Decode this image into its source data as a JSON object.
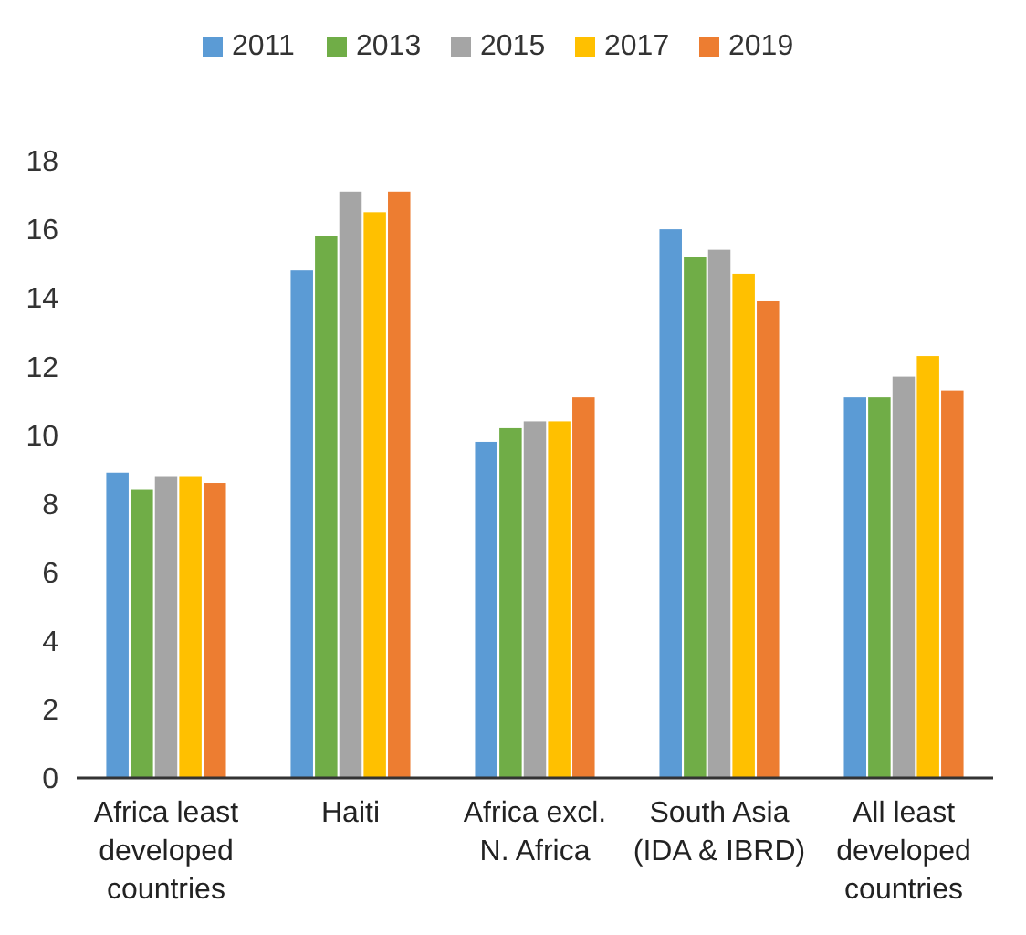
{
  "chart_data": {
    "type": "bar",
    "categories": [
      "Africa least developed countries",
      "Haiti",
      "Africa excl. N. Africa",
      "South Asia (IDA & IBRD)",
      "All least developed countries"
    ],
    "series": [
      {
        "name": "2011",
        "color": "#5b9bd5",
        "values": [
          8.9,
          14.8,
          9.8,
          16.0,
          11.1
        ]
      },
      {
        "name": "2013",
        "color": "#70ad47",
        "values": [
          8.4,
          15.8,
          10.2,
          15.2,
          11.1
        ]
      },
      {
        "name": "2015",
        "color": "#a5a5a5",
        "values": [
          8.8,
          17.1,
          10.4,
          15.4,
          11.7
        ]
      },
      {
        "name": "2017",
        "color": "#ffc000",
        "values": [
          8.8,
          16.5,
          10.4,
          14.7,
          12.3
        ]
      },
      {
        "name": "2019",
        "color": "#ed7d31",
        "values": [
          8.6,
          17.1,
          11.1,
          13.9,
          11.3
        ]
      }
    ],
    "ylim": [
      0,
      18
    ],
    "yticks": [
      0,
      2,
      4,
      6,
      8,
      10,
      12,
      14,
      16,
      18
    ],
    "grid": false,
    "legend": "top"
  }
}
